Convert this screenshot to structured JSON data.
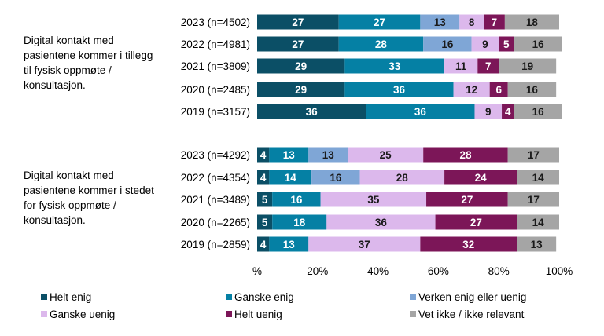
{
  "chart_data": {
    "type": "bar",
    "orientation": "horizontal",
    "stacked": true,
    "xlim": [
      0,
      100
    ],
    "x_ticks": [
      "%",
      "20%",
      "40%",
      "60%",
      "80%",
      "100%"
    ],
    "grid": false,
    "legend_position": "bottom",
    "series": [
      {
        "name": "Helt enig",
        "color": "#0b4f66"
      },
      {
        "name": "Ganske enig",
        "color": "#0580a4"
      },
      {
        "name": "Verken enig eller uenig",
        "color": "#7fa6d6"
      },
      {
        "name": "Ganske uenig",
        "color": "#dcb8ec"
      },
      {
        "name": "Helt uenig",
        "color": "#7c1658"
      },
      {
        "name": "Vet ikke / ikke relevant",
        "color": "#a5a5a5"
      }
    ],
    "groups": [
      {
        "label": "Digital kontakt med pasientene kommer i tillegg til fysisk oppmøte / konsultasjon.",
        "rows": [
          {
            "category": "2023 (n=4502)",
            "values": [
              27,
              27,
              13,
              8,
              7,
              18
            ]
          },
          {
            "category": "2022 (n=4981)",
            "values": [
              27,
              28,
              16,
              9,
              5,
              16
            ]
          },
          {
            "category": "2021 (n=3809)",
            "values": [
              29,
              33,
              null,
              11,
              7,
              19
            ]
          },
          {
            "category": "2020 (n=2485)",
            "values": [
              29,
              36,
              null,
              12,
              6,
              16
            ]
          },
          {
            "category": "2019 (n=3157)",
            "values": [
              36,
              36,
              null,
              9,
              4,
              16
            ]
          }
        ]
      },
      {
        "label": "Digital kontakt med pasientene kommer i stedet for fysisk oppmøte / konsultasjon.",
        "rows": [
          {
            "category": "2023 (n=4292)",
            "values": [
              4,
              13,
              13,
              25,
              28,
              17
            ]
          },
          {
            "category": "2022 (n=4354)",
            "values": [
              4,
              14,
              16,
              28,
              24,
              14
            ]
          },
          {
            "category": "2021 (n=3489)",
            "values": [
              5,
              16,
              null,
              35,
              27,
              17
            ]
          },
          {
            "category": "2020 (n=2265)",
            "values": [
              5,
              18,
              null,
              36,
              27,
              14
            ]
          },
          {
            "category": "2019 (n=2859)",
            "values": [
              4,
              13,
              null,
              37,
              32,
              13
            ]
          }
        ]
      }
    ]
  }
}
